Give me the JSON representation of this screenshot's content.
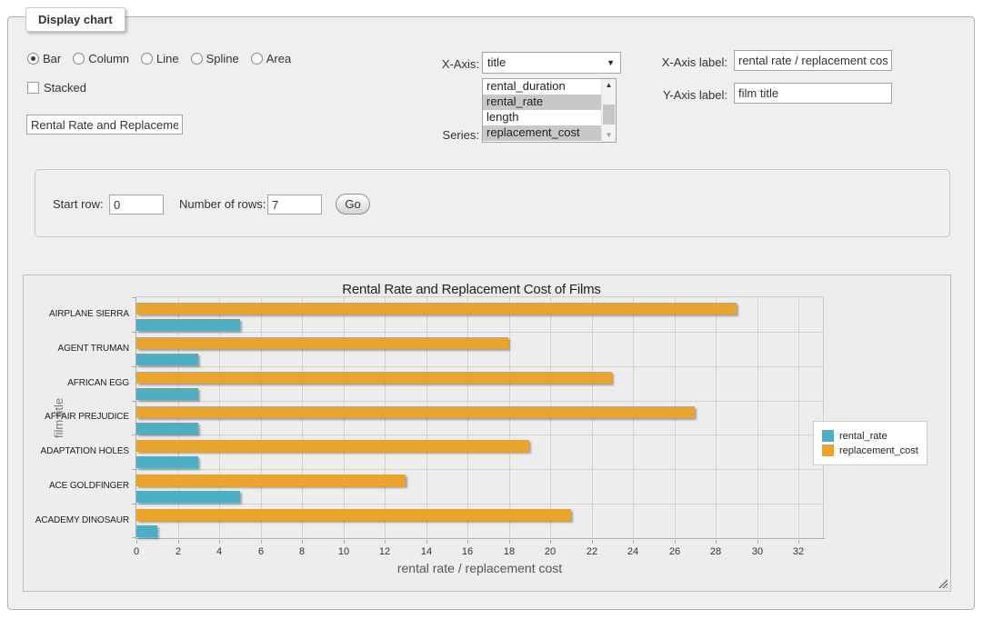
{
  "panel": {
    "legend": "Display chart"
  },
  "chart_type": {
    "options": [
      {
        "label": "Bar",
        "selected": true
      },
      {
        "label": "Column",
        "selected": false
      },
      {
        "label": "Line",
        "selected": false
      },
      {
        "label": "Spline",
        "selected": false
      },
      {
        "label": "Area",
        "selected": false
      }
    ]
  },
  "stacked": {
    "label": "Stacked",
    "checked": false
  },
  "chart_title_input": {
    "value": "Rental Rate and Replacement Cost of Films"
  },
  "x_axis_select": {
    "label": "X-Axis:",
    "value": "title"
  },
  "series_select": {
    "label": "Series:",
    "options": [
      {
        "label": "rental_duration",
        "selected": false
      },
      {
        "label": "rental_rate",
        "selected": true
      },
      {
        "label": "length",
        "selected": false
      },
      {
        "label": "replacement_cost",
        "selected": true
      }
    ]
  },
  "x_axis_label_input": {
    "label": "X-Axis label:",
    "value": "rental rate / replacement cost"
  },
  "y_axis_label_input": {
    "label": "Y-Axis label:",
    "value": "film title"
  },
  "row_controls": {
    "start_row_label": "Start row:",
    "start_row_value": "0",
    "num_rows_label": "Number of rows:",
    "num_rows_value": "7",
    "go_label": "Go"
  },
  "chart_data": {
    "type": "bar",
    "orientation": "horizontal",
    "title": "Rental Rate and Replacement Cost of Films",
    "xlabel": "rental rate / replacement cost",
    "ylabel": "film title",
    "categories": [
      "AIRPLANE SIERRA",
      "AGENT TRUMAN",
      "AFRICAN EGG",
      "AFFAIR PREJUDICE",
      "ADAPTATION HOLES",
      "ACE GOLDFINGER",
      "ACADEMY DINOSAUR"
    ],
    "series": [
      {
        "name": "rental_rate",
        "color": "#4FAFC2",
        "values": [
          4.99,
          2.99,
          2.99,
          2.99,
          2.99,
          4.99,
          0.99
        ]
      },
      {
        "name": "replacement_cost",
        "color": "#E9A42E",
        "values": [
          28.99,
          17.99,
          22.99,
          26.99,
          18.99,
          12.99,
          20.99
        ]
      }
    ],
    "xlim": [
      0,
      32
    ],
    "xticks": [
      0,
      2,
      4,
      6,
      8,
      10,
      12,
      14,
      16,
      18,
      20,
      22,
      24,
      26,
      28,
      30,
      32
    ],
    "grid": true,
    "legend_position": "right",
    "bar_draw_order": "last_series_on_top"
  }
}
